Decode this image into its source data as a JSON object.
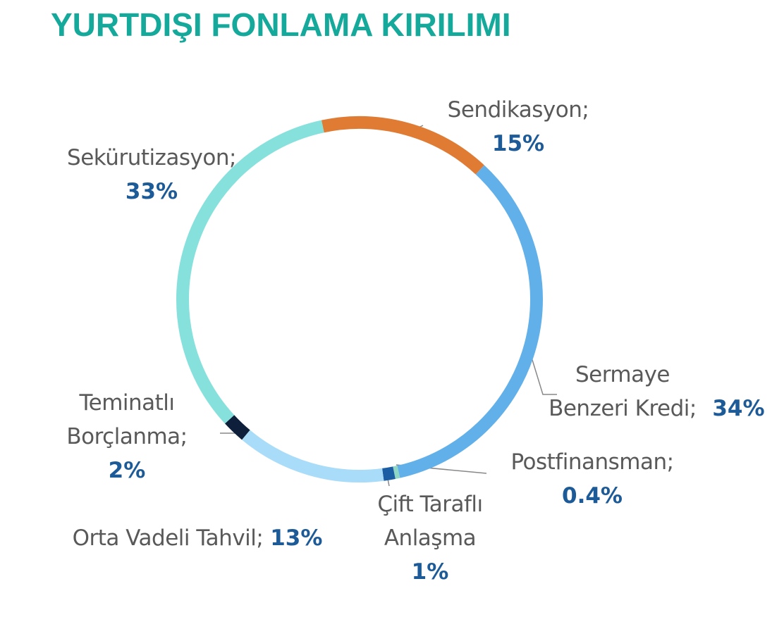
{
  "chart_data": {
    "type": "donut",
    "title": "YURTDIŞI FONLAMA KIRILIMI",
    "categories": [
      "Sendikasyon;",
      "Sermaye Benzeri Kredi;",
      "Postfinansman;",
      "Çift Taraflı Anlaşma",
      "Orta Vadeli Tahvil;",
      "Teminatlı Borçlanma;",
      "Sekürutizasyon;"
    ],
    "values": [
      15,
      34,
      0.4,
      1,
      13,
      2,
      33
    ],
    "value_labels": [
      "15%",
      "34%",
      "0.4%",
      "1%",
      "13%",
      "2%",
      "33%"
    ],
    "colors": [
      "#e07b34",
      "#62b0ea",
      "#8fd6c4",
      "#1b5ea3",
      "#a9dcf8",
      "#0e1f3b",
      "#86e1dc"
    ]
  }
}
